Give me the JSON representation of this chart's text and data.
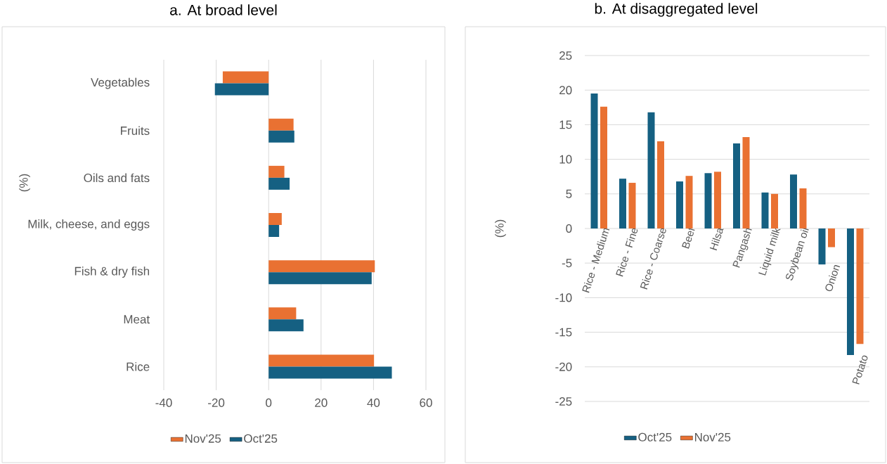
{
  "chart_data": [
    {
      "type": "bar",
      "orientation": "horizontal",
      "title": "a. At broad level",
      "ylabel": "(%)",
      "categories": [
        "Vegetables",
        "Fruits",
        "Oils and fats",
        "Milk, cheese, and eggs",
        "Fish & dry fish",
        "Meat",
        "Rice"
      ],
      "series": [
        {
          "name": "Nov'25",
          "color": "#e97132",
          "values": [
            -17.5,
            9.5,
            6,
            5,
            40.5,
            10.5,
            40.2
          ]
        },
        {
          "name": "Oct'25",
          "color": "#156082",
          "values": [
            -20.5,
            9.8,
            8,
            4,
            39.3,
            13.3,
            47
          ]
        }
      ],
      "xlim": [
        -40,
        60
      ],
      "xticks": [
        -40,
        -20,
        0,
        20,
        40,
        60
      ],
      "grid": "x",
      "legend": "bottom"
    },
    {
      "type": "bar",
      "title": "b. At disaggregated level",
      "ylabel": "(%)",
      "categories": [
        "Rice - Medium",
        "Rice - Fine",
        "Rice - Coarse",
        "Beef",
        "Hilsa",
        "Pangash",
        "Liquid milk",
        "Soybean oil",
        "Onion",
        "Potato"
      ],
      "series": [
        {
          "name": "Oct'25",
          "color": "#156082",
          "values": [
            19.5,
            7.2,
            16.8,
            6.8,
            8.0,
            12.3,
            5.2,
            7.8,
            -5.2,
            -18.3
          ]
        },
        {
          "name": "Nov'25",
          "color": "#e97132",
          "values": [
            17.6,
            6.6,
            12.6,
            7.6,
            8.2,
            13.2,
            5.0,
            5.8,
            -2.7,
            -16.7
          ]
        }
      ],
      "ylim": [
        -25,
        25
      ],
      "yticks": [
        -25,
        -20,
        -15,
        -10,
        -5,
        0,
        5,
        10,
        15,
        20,
        25
      ],
      "grid": "y",
      "legend": "bottom"
    }
  ]
}
